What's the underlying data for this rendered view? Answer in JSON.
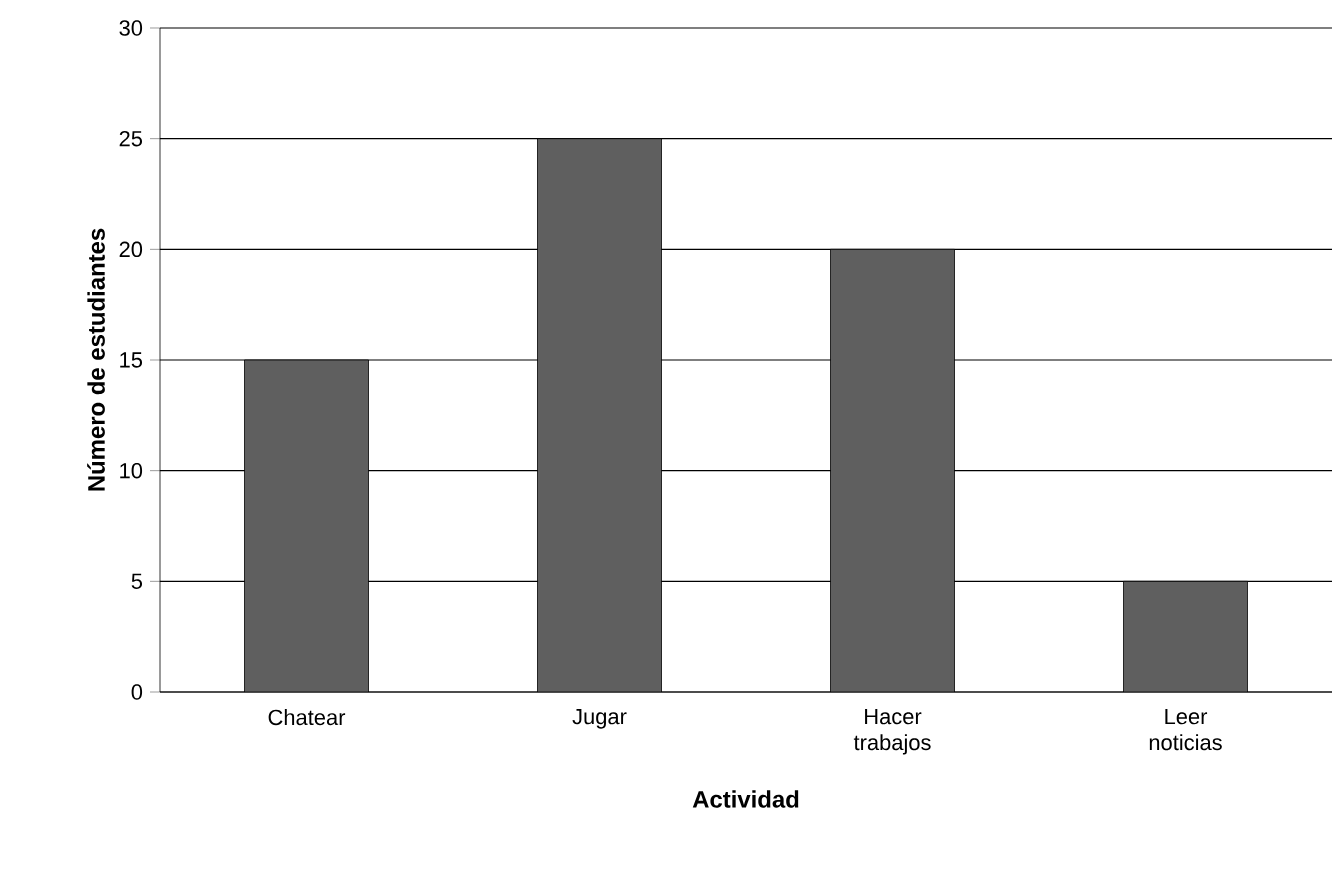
{
  "chart_data": {
    "type": "bar",
    "xlabel": "Actividad",
    "ylabel": "Número de estudiantes",
    "categories": [
      "Chatear",
      "Jugar",
      "Hacer trabajos",
      "Leer noticias"
    ],
    "values": [
      15,
      25,
      20,
      5
    ],
    "color": "#5f5f5f",
    "ylim": [
      0,
      30
    ],
    "yticks": [
      0,
      5,
      10,
      15,
      20,
      25,
      30
    ],
    "grid": "y"
  }
}
